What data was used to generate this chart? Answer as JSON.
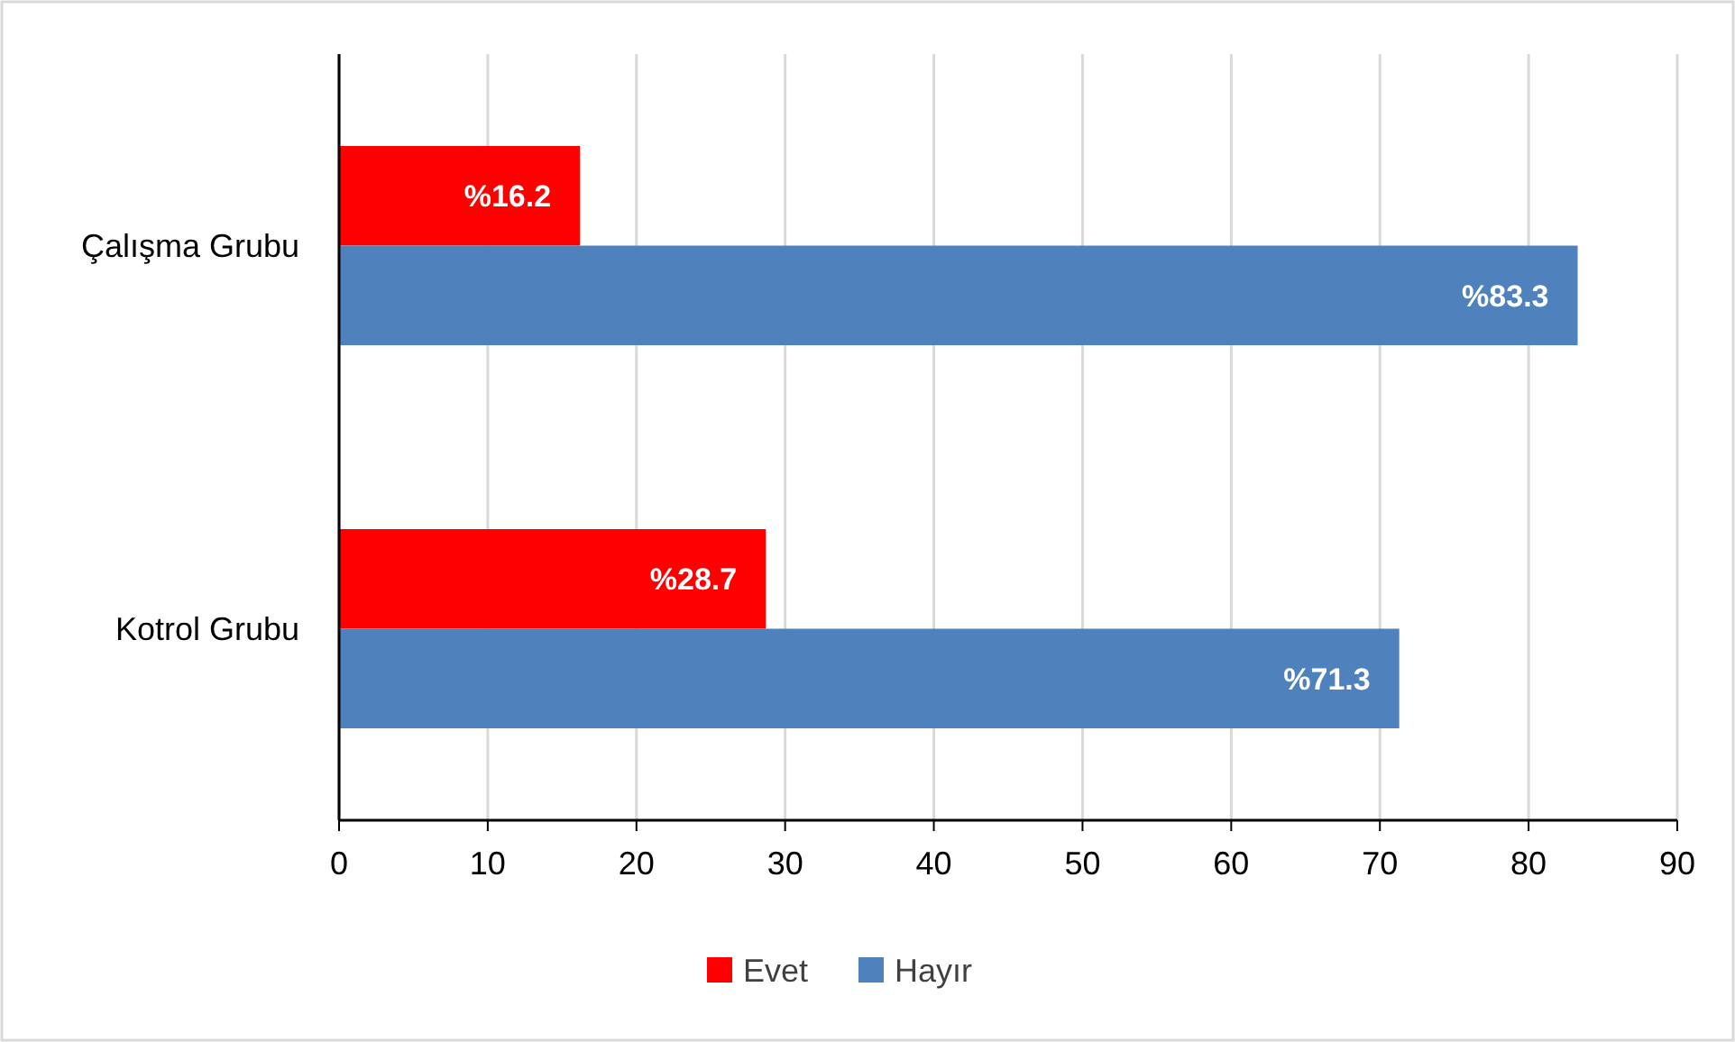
{
  "chart_data": {
    "type": "bar",
    "orientation": "horizontal",
    "categories": [
      "Çalışma Grubu",
      "Kotrol Grubu"
    ],
    "series": [
      {
        "name": "Evet",
        "color": "#ff0000",
        "values": [
          16.2,
          28.7
        ],
        "value_labels": [
          "%16.2",
          "%28.7"
        ]
      },
      {
        "name": "Hayır",
        "color": "#4f81bd",
        "values": [
          83.3,
          71.3
        ],
        "value_labels": [
          "%83.3",
          "%71.3"
        ]
      }
    ],
    "xlim": [
      0,
      90
    ],
    "xticks": [
      0,
      10,
      20,
      30,
      40,
      50,
      60,
      70,
      80,
      90
    ],
    "grid": "x",
    "legend": "bottom"
  }
}
